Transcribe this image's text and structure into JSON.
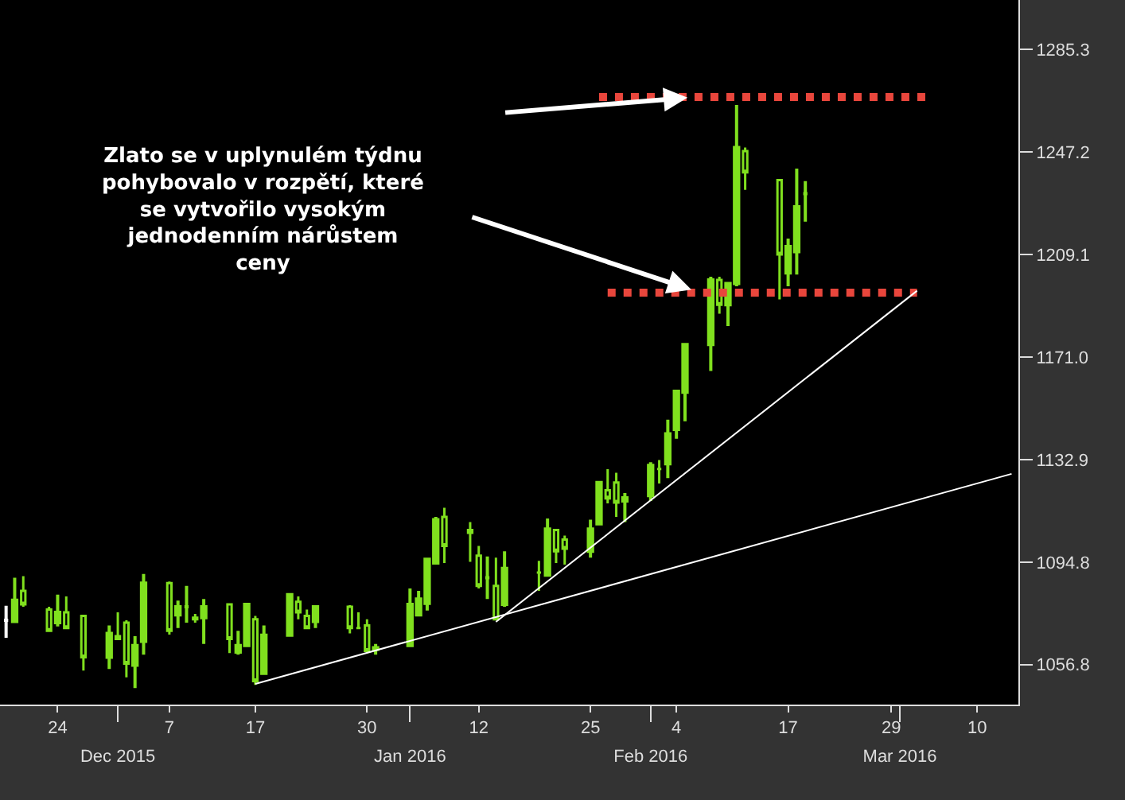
{
  "chart_data": {
    "type": "candlestick",
    "x": [
      "2015-11-18",
      "2015-11-19",
      "2015-11-20",
      "2015-11-23",
      "2015-11-24",
      "2015-11-25",
      "2015-11-27",
      "2015-11-30",
      "2015-12-01",
      "2015-12-02",
      "2015-12-03",
      "2015-12-04",
      "2015-12-07",
      "2015-12-08",
      "2015-12-09",
      "2015-12-10",
      "2015-12-11",
      "2015-12-14",
      "2015-12-15",
      "2015-12-16",
      "2015-12-17",
      "2015-12-18",
      "2015-12-21",
      "2015-12-22",
      "2015-12-23",
      "2015-12-24",
      "2015-12-28",
      "2015-12-29",
      "2015-12-30",
      "2015-12-31",
      "2016-01-04",
      "2016-01-05",
      "2016-01-06",
      "2016-01-07",
      "2016-01-08",
      "2016-01-11",
      "2016-01-12",
      "2016-01-13",
      "2016-01-14",
      "2016-01-15",
      "2016-01-19",
      "2016-01-20",
      "2016-01-21",
      "2016-01-22",
      "2016-01-25",
      "2016-01-26",
      "2016-01-27",
      "2016-01-28",
      "2016-01-29",
      "2016-02-01",
      "2016-02-02",
      "2016-02-03",
      "2016-02-04",
      "2016-02-05",
      "2016-02-08",
      "2016-02-09",
      "2016-02-10",
      "2016-02-11",
      "2016-02-12",
      "2016-02-16",
      "2016-02-17",
      "2016-02-18",
      "2016-02-19"
    ],
    "ohlc": [
      [
        1073.2,
        1078.6,
        1066.7,
        1073.2
      ],
      [
        1072.8,
        1089.0,
        1072.3,
        1080.7
      ],
      [
        1084.1,
        1089.6,
        1078.2,
        1079.1
      ],
      [
        1077.2,
        1078.2,
        1069.3,
        1069.3
      ],
      [
        1072.3,
        1082.7,
        1070.9,
        1076.2
      ],
      [
        1076.2,
        1082.1,
        1070.3,
        1070.3
      ],
      [
        1074.8,
        1075.2,
        1054.5,
        1059.5
      ],
      [
        1059.5,
        1071.3,
        1055.1,
        1068.3
      ],
      [
        1067.3,
        1076.2,
        1065.9,
        1066.3
      ],
      [
        1072.3,
        1073.2,
        1052.0,
        1057.1
      ],
      [
        1056.5,
        1067.3,
        1048.0,
        1063.8
      ],
      [
        1065.4,
        1090.4,
        1060.4,
        1087.0
      ],
      [
        1087.0,
        1087.6,
        1067.9,
        1069.3
      ],
      [
        1075.2,
        1080.5,
        1070.3,
        1078.2
      ],
      [
        1078.2,
        1086.0,
        1072.3,
        1078.2
      ],
      [
        1074.2,
        1075.6,
        1072.3,
        1073.6
      ],
      [
        1074.2,
        1081.1,
        1064.4,
        1078.2
      ],
      [
        1079.1,
        1079.1,
        1061.0,
        1066.3
      ],
      [
        1061.4,
        1069.3,
        1060.4,
        1063.8
      ],
      [
        1063.8,
        1079.5,
        1063.8,
        1079.1
      ],
      [
        1073.6,
        1074.8,
        1049.2,
        1050.6
      ],
      [
        1053.5,
        1071.3,
        1053.5,
        1067.7
      ],
      [
        1067.7,
        1083.1,
        1067.7,
        1082.7
      ],
      [
        1080.1,
        1082.1,
        1073.6,
        1076.2
      ],
      [
        1074.8,
        1077.2,
        1070.3,
        1070.3
      ],
      [
        1072.8,
        1078.8,
        1070.3,
        1078.2
      ],
      [
        1078.2,
        1078.8,
        1068.3,
        1070.3
      ],
      [
        1070.3,
        1076.2,
        1070.3,
        1070.3
      ],
      [
        1071.3,
        1073.6,
        1061.4,
        1061.8
      ],
      [
        1062.4,
        1064.4,
        1060.4,
        1063.0
      ],
      [
        1063.8,
        1085.0,
        1063.8,
        1079.1
      ],
      [
        1075.2,
        1084.1,
        1074.8,
        1081.1
      ],
      [
        1079.5,
        1096.5,
        1076.8,
        1095.9
      ],
      [
        1094.5,
        1111.6,
        1094.5,
        1110.6
      ],
      [
        1111.6,
        1115.0,
        1094.5,
        1100.8
      ],
      [
        1106.7,
        1109.7,
        1094.9,
        1105.7
      ],
      [
        1097.2,
        1100.8,
        1085.0,
        1086.0
      ],
      [
        1089.0,
        1096.9,
        1081.1,
        1089.0
      ],
      [
        1086.0,
        1096.5,
        1073.2,
        1073.6
      ],
      [
        1079.1,
        1098.8,
        1078.2,
        1092.5
      ],
      [
        1090.9,
        1095.3,
        1084.1,
        1090.9
      ],
      [
        1090.0,
        1111.0,
        1089.4,
        1107.1
      ],
      [
        1106.7,
        1106.7,
        1094.5,
        1098.8
      ],
      [
        1103.2,
        1104.7,
        1093.9,
        1099.8
      ],
      [
        1098.8,
        1110.6,
        1096.5,
        1107.1
      ],
      [
        1109.0,
        1124.8,
        1109.0,
        1124.4
      ],
      [
        1121.5,
        1129.3,
        1116.6,
        1118.5
      ],
      [
        1124.4,
        1128.0,
        1111.6,
        1116.9
      ],
      [
        1117.5,
        1120.5,
        1109.7,
        1118.7
      ],
      [
        1119.5,
        1131.9,
        1117.5,
        1130.7
      ],
      [
        1129.4,
        1132.7,
        1124.0,
        1129.4
      ],
      [
        1131.3,
        1147.7,
        1126.0,
        1142.5
      ],
      [
        1144.1,
        1158.9,
        1140.6,
        1158.3
      ],
      [
        1157.9,
        1176.0,
        1147.1,
        1175.6
      ],
      [
        1175.6,
        1200.8,
        1165.8,
        1199.6
      ],
      [
        1199.6,
        1200.8,
        1187.1,
        1190.4
      ],
      [
        1190.4,
        1198.9,
        1182.5,
        1198.3
      ],
      [
        1198.3,
        1264.6,
        1197.3,
        1248.8
      ],
      [
        1247.5,
        1248.8,
        1233.1,
        1239.6
      ],
      [
        1236.7,
        1236.7,
        1192.4,
        1209.1
      ],
      [
        1202.2,
        1215.0,
        1197.3,
        1212.0
      ],
      [
        1210.1,
        1241.0,
        1201.6,
        1226.8
      ],
      [
        1231.7,
        1236.3,
        1221.3,
        1231.7
      ]
    ],
    "colors": [
      "#ffffff",
      "#80e01e",
      "#80e01e",
      "#80e01e",
      "#80e01e",
      "#80e01e",
      "#80e01e",
      "#80e01e",
      "#80e01e",
      "#80e01e",
      "#80e01e",
      "#80e01e",
      "#80e01e",
      "#80e01e",
      "#80e01e",
      "#80e01e",
      "#80e01e",
      "#80e01e",
      "#80e01e",
      "#80e01e",
      "#80e01e",
      "#80e01e",
      "#80e01e",
      "#80e01e",
      "#80e01e",
      "#80e01e",
      "#80e01e",
      "#80e01e",
      "#80e01e",
      "#80e01e",
      "#80e01e",
      "#80e01e",
      "#80e01e",
      "#80e01e",
      "#80e01e",
      "#80e01e",
      "#80e01e",
      "#80e01e",
      "#80e01e",
      "#80e01e",
      "#80e01e",
      "#80e01e",
      "#80e01e",
      "#80e01e",
      "#80e01e",
      "#80e01e",
      "#80e01e",
      "#80e01e",
      "#80e01e",
      "#80e01e",
      "#80e01e",
      "#80e01e",
      "#80e01e",
      "#80e01e",
      "#80e01e",
      "#80e01e",
      "#80e01e",
      "#80e01e",
      "#80e01e",
      "#80e01e",
      "#80e01e",
      "#80e01e",
      "#80e01e"
    ],
    "series": [
      {
        "type": "line",
        "color": "#ffffff",
        "line_style": "solid",
        "x": [
          "2015-12-17",
          "2016-03-14"
        ],
        "values": [
          1049.6,
          1127.6
        ]
      },
      {
        "type": "line",
        "color": "#ffffff",
        "line_style": "solid",
        "x": [
          "2016-01-14",
          "2016-03-03"
        ],
        "values": [
          1072.6,
          1195.6
        ]
      },
      {
        "type": "line",
        "color": "#e8463c",
        "line_style": "dotted",
        "x": [
          "2016-01-26",
          "2016-03-04"
        ],
        "values": [
          1267.6,
          1267.6
        ]
      },
      {
        "type": "line",
        "color": "#e8463c",
        "line_style": "dotted",
        "x": [
          "2016-01-27",
          "2016-03-03"
        ],
        "values": [
          1194.9,
          1194.9
        ]
      }
    ],
    "annotations": [
      "Zlato se v uplynulém týdnu\npohybovalo v rozpětí, které\nse vytvořilo vysokým\njednodenním nárůstem\nceny"
    ],
    "xlim": [
      "2015-11-17T07:00",
      "2016-03-14T19:00"
    ],
    "xticks": [
      {
        "value": "2015-11-24",
        "label": "24"
      },
      {
        "value": "2015-12-07",
        "label": "7"
      },
      {
        "value": "2015-12-17",
        "label": "17"
      },
      {
        "value": "2015-12-30",
        "label": "30"
      },
      {
        "value": "2016-01-12",
        "label": "12"
      },
      {
        "value": "2016-01-25",
        "label": "25"
      },
      {
        "value": "2016-02-04",
        "label": "4"
      },
      {
        "value": "2016-02-17",
        "label": "17"
      },
      {
        "value": "2016-02-29",
        "label": "29"
      },
      {
        "value": "2016-03-10",
        "label": "10"
      }
    ],
    "x2lim": [
      "2015-11-17T07:00",
      "2016-03-14T19:00"
    ],
    "x2ticks": [
      {
        "value": "2015-12-01",
        "label": "Dec 2015"
      },
      {
        "value": "2016-01-04",
        "label": "Jan 2016"
      },
      {
        "value": "2016-02-01",
        "label": "Feb 2016"
      },
      {
        "value": "2016-03-01",
        "label": "Mar 2016"
      }
    ],
    "ylim": [
      1041.9,
      1303.6
    ],
    "yticks": [
      1285.3,
      1247.2,
      1209.1,
      {
        "value": 1171.0,
        "label": "1171.0"
      },
      1132.9,
      1094.8,
      1056.8
    ],
    "grid": false
  }
}
